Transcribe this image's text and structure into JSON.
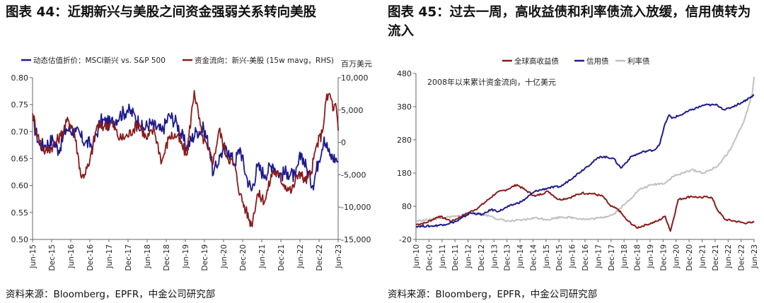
{
  "left": {
    "title": "图表 44：近期新兴与美股之间资金强弱关系转向美股",
    "source": "资料来源：Bloomberg，EPFR，中金公司研究部",
    "chart_data": {
      "type": "line",
      "title": "",
      "legend": [
        {
          "name": "动态估值折价：MSCI新兴 vs. S&P 500",
          "color": "#1f1a8c"
        },
        {
          "name": "资金流向：新兴-美股 (15w mavg，RHS)",
          "color": "#8b1a1a"
        }
      ],
      "right_axis_unit": "百万美元",
      "y_left": {
        "ylim": [
          0.5,
          0.8
        ],
        "ticks": [
          "0.80",
          "0.75",
          "0.70",
          "0.65",
          "0.60",
          "0.55",
          "0.50"
        ]
      },
      "y_right": {
        "ylim": [
          -15000,
          10000
        ],
        "ticks": [
          "10,000",
          "5,000",
          "0",
          "-5,000",
          "-10,000",
          "-15,000"
        ]
      },
      "x_ticks": [
        "Jun-15",
        "Dec-15",
        "Jun-16",
        "Dec-16",
        "Jun-17",
        "Dec-17",
        "Jun-18",
        "Dec-18",
        "Jun-19",
        "Dec-19",
        "Jun-20",
        "Dec-20",
        "Jun-21",
        "Dec-21",
        "Jun-22",
        "Dec-22",
        "Jun-23"
      ],
      "series": [
        {
          "name": "动态估值折价：MSCI新兴 vs. S&P 500",
          "axis": "left",
          "color": "#1f1a8c",
          "x": [
            2015.42,
            2015.6,
            2015.75,
            2015.95,
            2016.1,
            2016.3,
            2016.55,
            2016.8,
            2017.0,
            2017.2,
            2017.45,
            2017.7,
            2017.9,
            2018.1,
            2018.3,
            2018.5,
            2018.8,
            2019.0,
            2019.2,
            2019.45,
            2019.7,
            2019.9,
            2020.05,
            2020.15,
            2020.35,
            2020.55,
            2020.7,
            2020.85,
            2021.0,
            2021.15,
            2021.3,
            2021.5,
            2021.7,
            2021.9,
            2022.1,
            2022.3,
            2022.45,
            2022.6,
            2022.75,
            2022.9,
            2023.05,
            2023.2,
            2023.35,
            2023.42
          ],
          "values": [
            0.72,
            0.675,
            0.675,
            0.685,
            0.665,
            0.705,
            0.7,
            0.68,
            0.675,
            0.72,
            0.715,
            0.73,
            0.74,
            0.73,
            0.705,
            0.715,
            0.7,
            0.73,
            0.715,
            0.67,
            0.7,
            0.705,
            0.67,
            0.62,
            0.66,
            0.665,
            0.64,
            0.67,
            0.62,
            0.59,
            0.635,
            0.62,
            0.64,
            0.62,
            0.625,
            0.615,
            0.66,
            0.63,
            0.6,
            0.645,
            0.69,
            0.655,
            0.65,
            0.645
          ]
        },
        {
          "name": "资金流向：新兴-美股 (15w mavg，RHS)",
          "axis": "right",
          "color": "#8b1a1a",
          "x": [
            2015.42,
            2015.55,
            2015.75,
            2015.95,
            2016.15,
            2016.35,
            2016.5,
            2016.7,
            2016.9,
            2017.1,
            2017.3,
            2017.5,
            2017.7,
            2017.9,
            2018.05,
            2018.2,
            2018.4,
            2018.6,
            2018.8,
            2019.0,
            2019.2,
            2019.45,
            2019.65,
            2019.85,
            2020.0,
            2020.15,
            2020.3,
            2020.5,
            2020.7,
            2020.85,
            2021.0,
            2021.15,
            2021.3,
            2021.5,
            2021.7,
            2021.85,
            2022.0,
            2022.2,
            2022.4,
            2022.55,
            2022.7,
            2022.85,
            2023.0,
            2023.1,
            2023.2,
            2023.3,
            2023.35,
            2023.42
          ],
          "values": [
            4500,
            1000,
            -1500,
            -500,
            1000,
            3500,
            2000,
            -5500,
            -3500,
            2500,
            2500,
            3000,
            500,
            1000,
            2000,
            3000,
            500,
            2000,
            -3000,
            1000,
            1000,
            -2000,
            8000,
            1000,
            -1000,
            -3000,
            2000,
            -2000,
            -3500,
            -8000,
            -10500,
            -12800,
            -8000,
            -9000,
            -4500,
            -5000,
            -6500,
            -7500,
            -4500,
            -6000,
            -5000,
            -500,
            1500,
            6500,
            7500,
            5000,
            6000,
            1800
          ]
        }
      ]
    }
  },
  "right": {
    "title": "图表 45：过去一周，高收益债和利率债流入放缓，信用债转为流入",
    "source": "资料来源：Bloomberg，EPFR，中金公司研究部",
    "chart_data": {
      "type": "line",
      "title": "",
      "annotation": "2008年以来累计资金流向，十亿美元",
      "legend": [
        {
          "name": "全球高收益债",
          "color": "#8b1a1a"
        },
        {
          "name": "信用债",
          "color": "#1f1a8c"
        },
        {
          "name": "利率债",
          "color": "#c0c0c0"
        }
      ],
      "ylim": [
        -20,
        480
      ],
      "y_ticks": [
        "480",
        "380",
        "280",
        "180",
        "80",
        "-20"
      ],
      "x_ticks": [
        "Jun-10",
        "Dec-10",
        "Jun-11",
        "Dec-11",
        "Jun-12",
        "Dec-12",
        "Jun-13",
        "Dec-13",
        "Jun-14",
        "Dec-14",
        "Jun-15",
        "Dec-15",
        "Jun-16",
        "Dec-16",
        "Jun-17",
        "Dec-17",
        "Jun-18",
        "Dec-18",
        "Jun-19",
        "Dec-19",
        "Jun-20",
        "Dec-20",
        "Jun-21",
        "Dec-21",
        "Jun-22",
        "Dec-22",
        "Jun-23"
      ],
      "series": [
        {
          "name": "全球高收益债",
          "color": "#8b1a1a",
          "x": [
            2010.42,
            2010.8,
            2011.3,
            2011.8,
            2012.3,
            2012.8,
            2013.2,
            2013.5,
            2013.9,
            2014.3,
            2014.6,
            2015.0,
            2015.5,
            2015.9,
            2016.3,
            2016.8,
            2017.2,
            2017.6,
            2017.9,
            2018.2,
            2018.5,
            2018.9,
            2019.3,
            2019.7,
            2020.0,
            2020.2,
            2020.5,
            2021.0,
            2021.4,
            2021.6,
            2021.8,
            2022.0,
            2022.3,
            2022.7,
            2023.0,
            2023.3,
            2023.42
          ],
          "values": [
            25,
            30,
            50,
            35,
            55,
            75,
            100,
            120,
            130,
            145,
            130,
            110,
            125,
            100,
            105,
            120,
            118,
            110,
            80,
            70,
            40,
            15,
            25,
            35,
            50,
            5,
            100,
            110,
            105,
            110,
            105,
            70,
            40,
            35,
            30,
            30,
            32
          ]
        },
        {
          "name": "信用债",
          "color": "#1f1a8c",
          "x": [
            2010.42,
            2011.0,
            2011.5,
            2012.0,
            2012.5,
            2013.0,
            2013.3,
            2013.6,
            2014.0,
            2014.5,
            2015.0,
            2015.5,
            2016.0,
            2016.5,
            2017.0,
            2017.5,
            2018.0,
            2018.3,
            2018.7,
            2019.2,
            2019.6,
            2019.8,
            2020.0,
            2020.15,
            2020.25,
            2020.6,
            2021.0,
            2021.5,
            2022.0,
            2022.3,
            2022.6,
            2023.0,
            2023.3,
            2023.42
          ],
          "values": [
            20,
            20,
            25,
            35,
            60,
            55,
            70,
            65,
            80,
            95,
            125,
            135,
            140,
            170,
            200,
            230,
            225,
            195,
            230,
            245,
            250,
            270,
            330,
            355,
            345,
            355,
            370,
            385,
            385,
            370,
            380,
            395,
            410,
            415
          ]
        },
        {
          "name": "利率债",
          "color": "#c0c0c0",
          "x": [
            2010.42,
            2011.0,
            2011.5,
            2012.0,
            2012.5,
            2013.0,
            2013.3,
            2013.6,
            2014.0,
            2014.5,
            2015.0,
            2015.5,
            2016.0,
            2016.5,
            2017.0,
            2017.5,
            2018.0,
            2018.5,
            2019.0,
            2019.5,
            2020.0,
            2020.3,
            2020.7,
            2021.0,
            2021.5,
            2022.0,
            2022.5,
            2022.8,
            2023.0,
            2023.2,
            2023.35,
            2023.42
          ],
          "values": [
            35,
            40,
            45,
            50,
            60,
            55,
            50,
            40,
            35,
            38,
            45,
            40,
            48,
            45,
            40,
            45,
            55,
            90,
            130,
            145,
            150,
            170,
            180,
            190,
            180,
            200,
            250,
            300,
            330,
            380,
            420,
            470
          ]
        }
      ]
    }
  }
}
